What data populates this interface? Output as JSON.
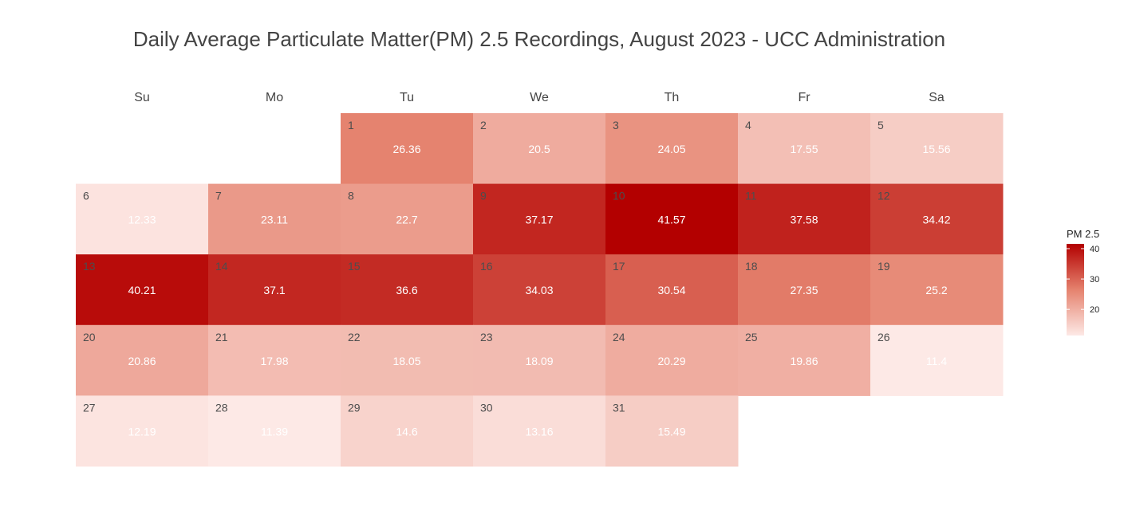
{
  "chart_data": {
    "type": "heatmap",
    "title": "Daily Average Particulate Matter(PM) 2.5 Recordings, August 2023 - UCC Administration",
    "weekdays": [
      "Su",
      "Mo",
      "Tu",
      "We",
      "Th",
      "Fr",
      "Sa"
    ],
    "first_weekday_index": 2,
    "days": [
      1,
      2,
      3,
      4,
      5,
      6,
      7,
      8,
      9,
      10,
      11,
      12,
      13,
      14,
      15,
      16,
      17,
      18,
      19,
      20,
      21,
      22,
      23,
      24,
      25,
      26,
      27,
      28,
      29,
      30,
      31
    ],
    "values": [
      26.36,
      20.5,
      24.05,
      17.55,
      15.56,
      12.33,
      23.11,
      22.7,
      37.17,
      41.57,
      37.58,
      34.42,
      40.21,
      37.1,
      36.6,
      34.03,
      30.54,
      27.35,
      25.2,
      20.86,
      17.98,
      18.05,
      18.09,
      20.29,
      19.86,
      11.4,
      12.19,
      11.39,
      14.6,
      13.16,
      15.49
    ],
    "value_labels": [
      "26.36",
      "20.5",
      "24.05",
      "17.55",
      "15.56",
      "12.33",
      "23.11",
      "22.7",
      "37.17",
      "41.57",
      "37.58",
      "34.42",
      "40.21",
      "37.1",
      "36.6",
      "34.03",
      "30.54",
      "27.35",
      "25.2",
      "20.86",
      "17.98",
      "18.05",
      "18.09",
      "20.29",
      "19.86",
      "11.4",
      "12.19",
      "11.39",
      "14.6",
      "13.16",
      "15.49"
    ],
    "legend": {
      "title": "PM 2.5",
      "ticks": [
        20,
        30,
        40
      ],
      "tick_labels": [
        "20",
        "30",
        "40"
      ],
      "range": [
        11.39,
        41.57
      ],
      "placement": "right"
    },
    "colors": {
      "low": "#fde9e6",
      "mid": "#e5826e",
      "high": "#b30000"
    }
  }
}
